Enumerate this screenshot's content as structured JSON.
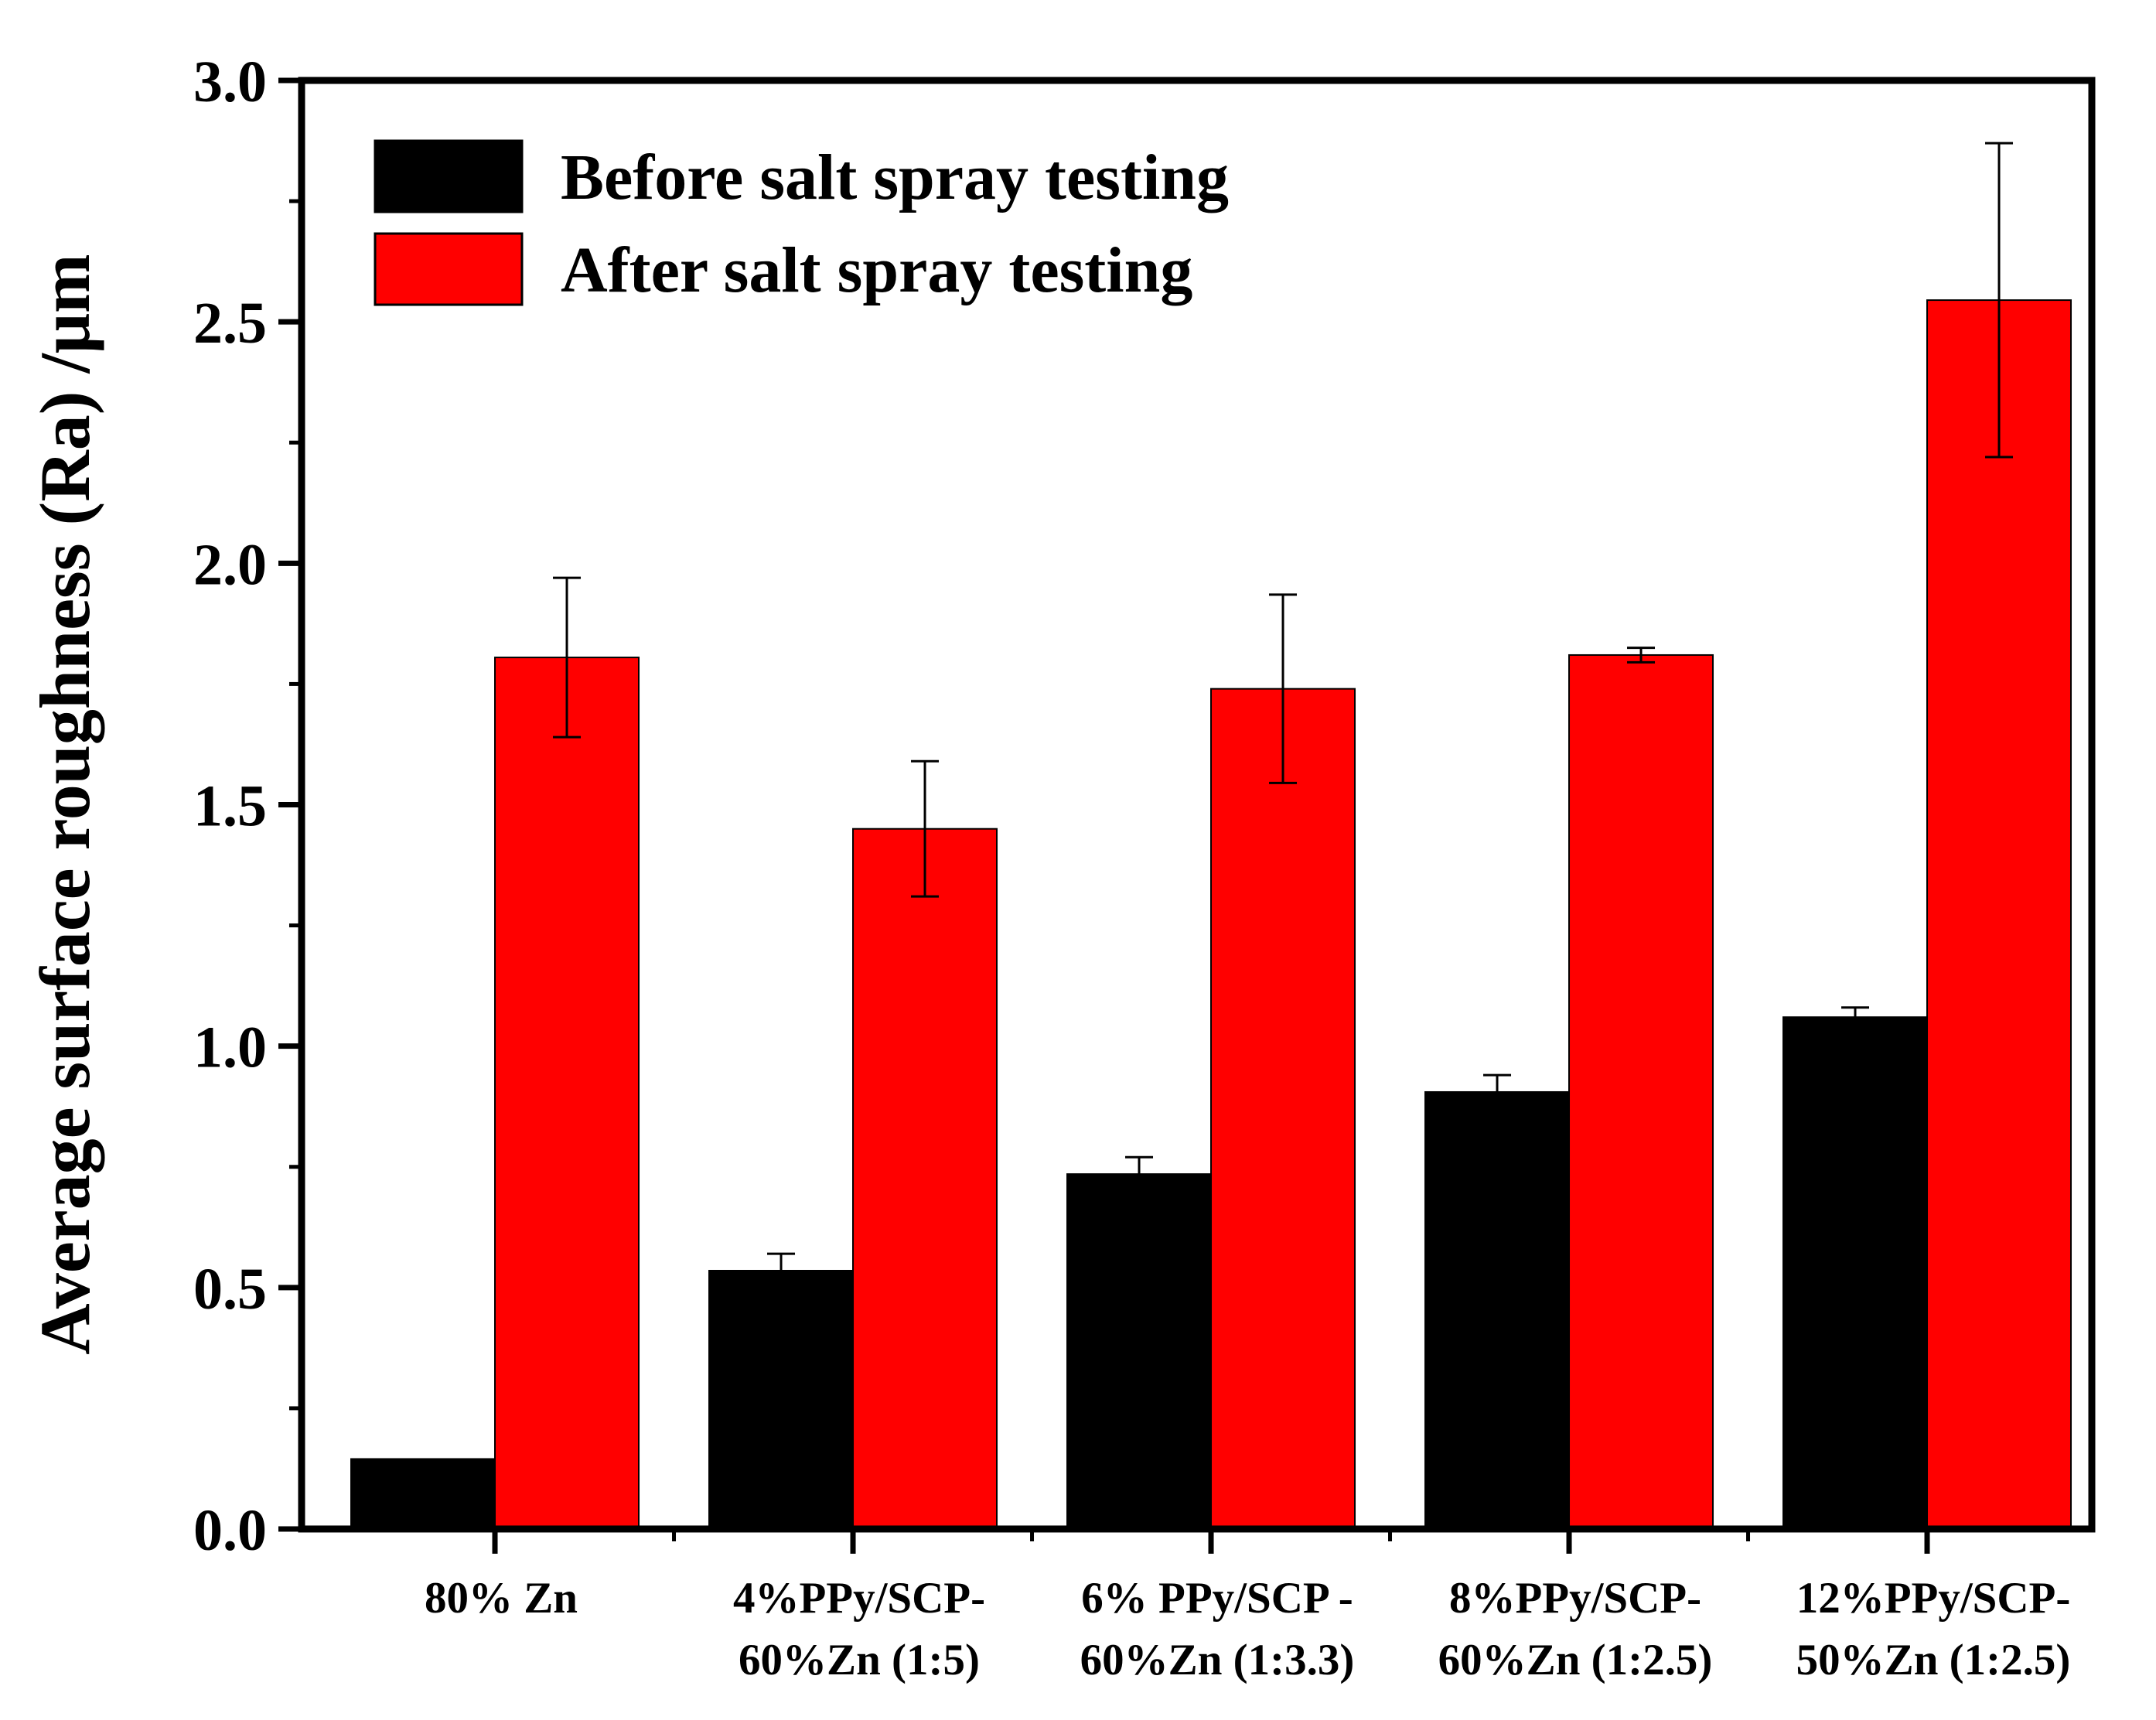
{
  "chart_data": {
    "type": "bar",
    "ylabel": "Average surface roughness (Ra) /μm",
    "ylim": [
      0,
      3.0
    ],
    "yticks": [
      "0.0",
      "0.5",
      "1.0",
      "1.5",
      "2.0",
      "2.5",
      "3.0"
    ],
    "categories": [
      [
        "80% Zn"
      ],
      [
        "4%PPy/SCP-",
        "60%Zn (1:5)"
      ],
      [
        "6% PPy/SCP -",
        "60%Zn (1:3.3)"
      ],
      [
        "8%PPy/SCP-",
        "60%Zn (1:2.5)"
      ],
      [
        "12%PPy/SCP-",
        "50%Zn (1:2.5)"
      ]
    ],
    "series": [
      {
        "name": "Before salt spray testing",
        "color": "#000000",
        "values": [
          0.145,
          0.535,
          0.735,
          0.905,
          1.06
        ],
        "errors": [
          0.0,
          0.035,
          0.035,
          0.035,
          0.02
        ]
      },
      {
        "name": "After salt spray testing",
        "color": "#ff0000",
        "values": [
          1.805,
          1.45,
          1.74,
          1.81,
          2.545
        ],
        "errors": [
          0.165,
          0.14,
          0.195,
          0.015,
          0.325
        ]
      }
    ],
    "legend": "top-left",
    "grid": false
  }
}
